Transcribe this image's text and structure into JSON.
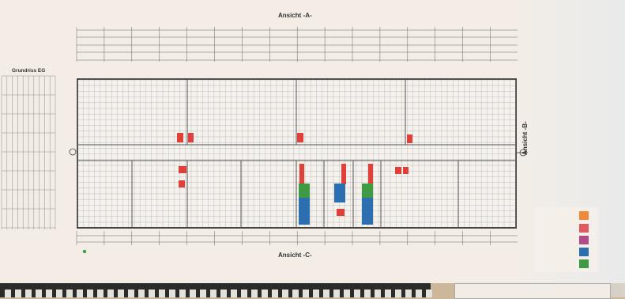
{
  "drawing": {
    "title_top": "Ansicht -A-",
    "title_bottom": "Ansicht -C-",
    "title_right": "Ansicht -B-",
    "plan_title": "Grundriss EG"
  },
  "colors": {
    "line": "#555555",
    "grid": "#9a9a9a",
    "red": "#e0403a",
    "blue": "#2b6fb0",
    "green": "#3f9a44",
    "orange": "#ee8a3a",
    "pink": "#e05860",
    "purple": "#b04a88"
  },
  "legend": [
    {
      "color": "#ee8a3a",
      "icon": "orange-swatch"
    },
    {
      "color": "#e05860",
      "icon": "red-swatch"
    },
    {
      "color": "#b04a88",
      "icon": "purple-swatch"
    },
    {
      "color": "#2b6fb0",
      "icon": "blue-swatch"
    },
    {
      "color": "#3f9a44",
      "icon": "green-swatch"
    }
  ]
}
